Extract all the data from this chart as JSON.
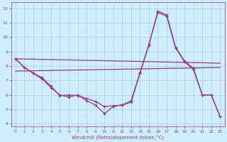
{
  "xlabel": "Windchill (Refroidissement éolien,°C)",
  "bg_color": "#cceeff",
  "grid_color": "#aaccdd",
  "line_color": "#993399",
  "xlim": [
    -0.5,
    23.5
  ],
  "ylim": [
    3.8,
    12.4
  ],
  "xticks": [
    0,
    1,
    2,
    3,
    4,
    5,
    6,
    7,
    8,
    9,
    10,
    11,
    12,
    13,
    14,
    15,
    16,
    17,
    18,
    19,
    20,
    21,
    22,
    23
  ],
  "yticks": [
    4,
    5,
    6,
    7,
    8,
    9,
    10,
    11,
    12
  ],
  "line1_x": [
    0,
    1,
    2,
    3,
    4,
    5,
    6,
    7,
    8,
    9,
    10,
    11,
    12,
    13,
    14,
    15,
    16,
    17,
    18,
    19,
    20,
    21,
    22,
    23
  ],
  "line1_y": [
    8.5,
    7.9,
    7.5,
    7.1,
    6.5,
    6.0,
    5.85,
    6.0,
    5.6,
    5.3,
    4.7,
    5.2,
    5.3,
    5.5,
    7.5,
    9.45,
    11.8,
    11.55,
    9.3,
    8.35,
    7.85,
    6.0,
    6.0,
    4.5
  ],
  "line2_x": [
    0,
    1,
    2,
    3,
    4,
    5,
    6,
    7,
    8,
    9,
    10,
    11,
    12,
    13,
    14,
    15,
    16,
    17,
    18,
    19,
    20,
    21,
    22,
    23
  ],
  "line2_y": [
    8.5,
    7.9,
    7.5,
    7.2,
    6.6,
    5.95,
    6.0,
    5.95,
    5.75,
    5.55,
    5.2,
    5.25,
    5.3,
    5.6,
    7.55,
    9.5,
    11.7,
    11.45,
    9.25,
    8.3,
    7.75,
    6.0,
    6.0,
    4.5
  ],
  "line3_x": [
    0,
    23
  ],
  "line3_y": [
    8.5,
    8.2
  ],
  "line4_x": [
    0,
    23
  ],
  "line4_y": [
    7.65,
    7.9
  ]
}
